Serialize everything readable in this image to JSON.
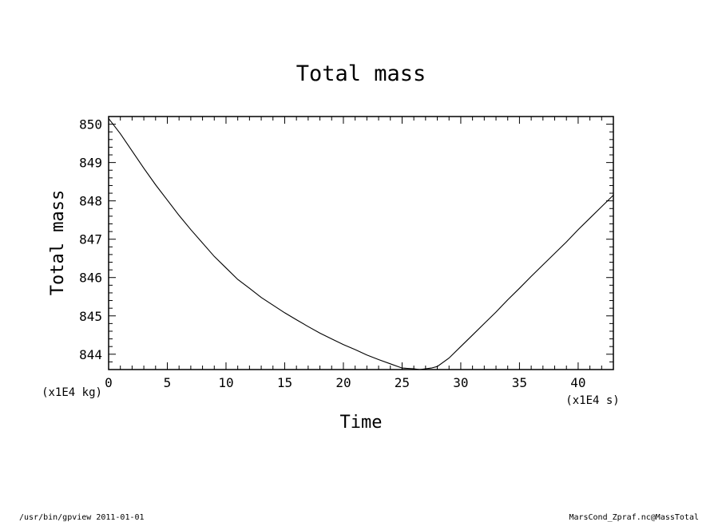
{
  "chart_data": {
    "type": "line",
    "title": "Total mass",
    "xlabel": "Time",
    "ylabel": "Total mass",
    "x_unit_label": "(x1E4 s)",
    "y_unit_label": "(x1E4 kg)",
    "xlim": [
      0,
      43
    ],
    "ylim": [
      843.6,
      850.2
    ],
    "x_ticks": [
      0,
      5,
      10,
      15,
      20,
      25,
      30,
      35,
      40
    ],
    "y_ticks": [
      844,
      845,
      846,
      847,
      848,
      849,
      850
    ],
    "x_tick_labels": [
      "0",
      "5",
      "10",
      "15",
      "20",
      "25",
      "30",
      "35",
      "40"
    ],
    "y_tick_labels": [
      "844",
      "845",
      "846",
      "847",
      "848",
      "849",
      "850"
    ],
    "grid": false,
    "series": [
      {
        "x": [
          0,
          1,
          2,
          3,
          4,
          5,
          6,
          7,
          8,
          9,
          10,
          11,
          12,
          13,
          14,
          15,
          16,
          17,
          18,
          19,
          20,
          21,
          22,
          23,
          24,
          25,
          26,
          26.5,
          27,
          27.5,
          28,
          29,
          30,
          31,
          32,
          33,
          34,
          35,
          36,
          37,
          38,
          39,
          40,
          41,
          42,
          43
        ],
        "y": [
          850.15,
          849.75,
          849.3,
          848.85,
          848.42,
          848.02,
          847.62,
          847.25,
          846.9,
          846.55,
          846.25,
          845.95,
          845.72,
          845.48,
          845.28,
          845.08,
          844.9,
          844.72,
          844.55,
          844.4,
          844.25,
          844.12,
          843.98,
          843.86,
          843.75,
          843.64,
          843.62,
          843.6,
          843.62,
          843.64,
          843.68,
          843.9,
          844.2,
          844.5,
          844.8,
          845.1,
          845.42,
          845.72,
          846.03,
          846.33,
          846.63,
          846.93,
          847.25,
          847.55,
          847.85,
          848.15
        ]
      }
    ]
  },
  "footer": {
    "left": "/usr/bin/gpview  2011-01-01",
    "right": "MarsCond_Zpraf.nc@MassTotal"
  }
}
